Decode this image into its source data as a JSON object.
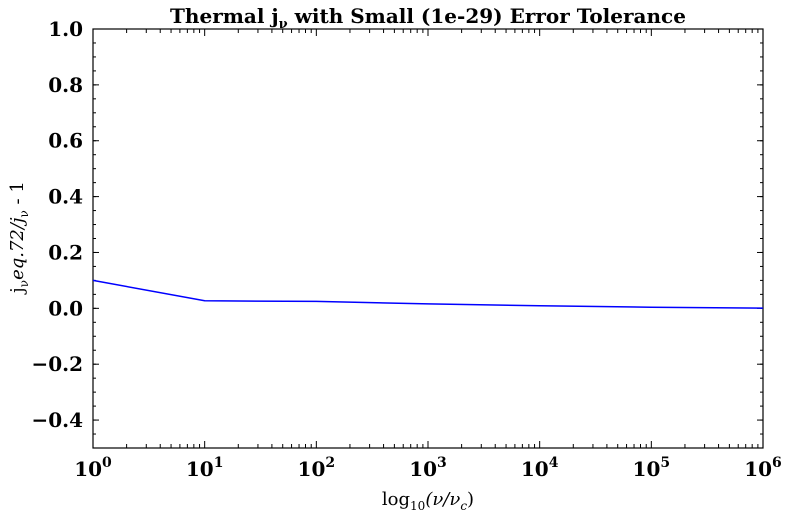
{
  "chart_data": {
    "type": "line",
    "title": "Thermal j_ν with Small (1e-29) Error Tolerance",
    "title_parts": {
      "pre": "Thermal j",
      "sub": "ν",
      "post": " with Small (1e-29) Error Tolerance"
    },
    "xlabel": "log10(ν/νc)",
    "xlabel_parts": {
      "log": "log",
      "log_sub": "10",
      "open": "(ν/ν",
      "nu_sub": "c",
      "close": ")"
    },
    "ylabel": "jν eq.72/jν  - 1",
    "ylabel_parts": {
      "j1": "j",
      "sub1": "ν",
      "mid": "eq.72/j",
      "sub2": "ν",
      "end": "  - 1"
    },
    "x_scale": "log",
    "xlim": [
      1,
      1000000
    ],
    "ylim": [
      -0.5,
      1.0
    ],
    "x_tick_labels": [
      {
        "base": "10",
        "exp": "0"
      },
      {
        "base": "10",
        "exp": "1"
      },
      {
        "base": "10",
        "exp": "2"
      },
      {
        "base": "10",
        "exp": "3"
      },
      {
        "base": "10",
        "exp": "4"
      },
      {
        "base": "10",
        "exp": "5"
      },
      {
        "base": "10",
        "exp": "6"
      }
    ],
    "y_ticks": [
      -0.4,
      -0.2,
      0.0,
      0.2,
      0.4,
      0.6,
      0.8,
      1.0
    ],
    "y_tick_labels": [
      "−0.4",
      "−0.2",
      "0.0",
      "0.2",
      "0.4",
      "0.6",
      "0.8",
      "1.0"
    ],
    "grid": false,
    "series": [
      {
        "color": "#0000ff",
        "x": [
          1,
          10,
          100,
          1000,
          10000,
          100000,
          1000000
        ],
        "y": [
          0.1,
          0.027,
          0.025,
          0.016,
          0.009,
          0.004,
          0.001
        ]
      }
    ]
  }
}
